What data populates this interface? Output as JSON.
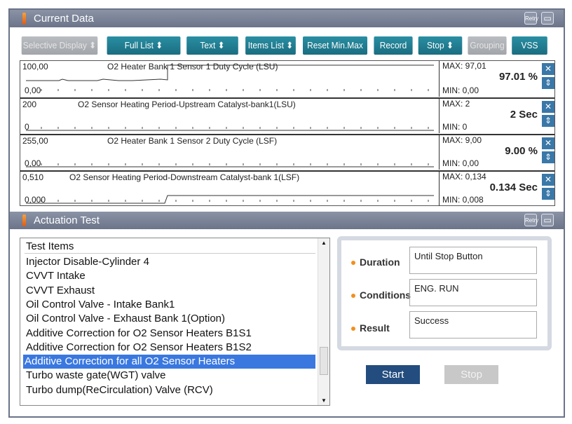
{
  "current_data": {
    "title": "Current Data",
    "toolbar": [
      "Selective Display ⬍",
      "Full List ⬍",
      "Text ⬍",
      "Items List ⬍",
      "Reset Min.Max",
      "Record",
      "Stop ⬍",
      "Grouping",
      "VSS"
    ],
    "rows": [
      {
        "top": "100,00",
        "bottom": "0,00",
        "name": "O2 Heater Bank 1 Sensor 1 Duty Cycle (LSU)",
        "max": "MAX: 97,01",
        "value": "97.01 %",
        "min": "MIN: 0,00"
      },
      {
        "top": "200",
        "bottom": "0",
        "name": "O2 Sensor Heating Period-Upstream Catalyst-bank1(LSU)",
        "max": "MAX: 2",
        "value": "2 Sec",
        "min": "MIN: 0"
      },
      {
        "top": "255,00",
        "bottom": "0,00",
        "name": "O2 Heater Bank 1 Sensor 2 Duty Cycle (LSF)",
        "max": "MAX: 9,00",
        "value": "9.00 %",
        "min": "MIN: 0,00"
      },
      {
        "top": "0,510",
        "bottom": "0,000",
        "name": "O2 Sensor Heating Period-Downstream Catalyst-bank 1(LSF)",
        "max": "MAX: 0,134",
        "value": "0.134 Sec",
        "min": "MIN: 0,008"
      }
    ]
  },
  "actuation": {
    "title": "Actuation Test",
    "list_header": "Test Items",
    "items": [
      "Injector Disable-Cylinder 4",
      "CVVT Intake",
      "CVVT Exhaust",
      "Oil Control Valve - Intake Bank1",
      "Oil Control Valve - Exhaust Bank 1(Option)",
      "Additive Correction for O2 Sensor Heaters B1S1",
      "Additive Correction for O2 Sensor Heaters B1S2",
      "Additive Correction for all O2 Sensor Heaters",
      "Turbo waste gate(WGT) valve",
      "Turbo dump(ReCirculation) Valve (RCV)"
    ],
    "selected_index": 7,
    "duration_label": "Duration",
    "duration": "Until Stop Button",
    "conditions_label": "Conditions",
    "conditions": "ENG. RUN",
    "result_label": "Result",
    "result": "Success",
    "start": "Start",
    "stop": "Stop"
  },
  "retry": "Retry",
  "colors": {
    "accent": "#1f7c90",
    "header": "#7a8297",
    "selection": "#3a78e0"
  }
}
